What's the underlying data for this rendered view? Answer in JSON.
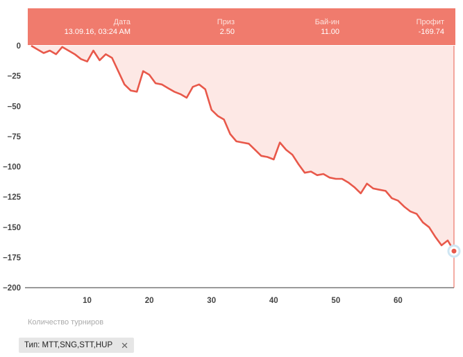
{
  "chart_data": {
    "type": "area",
    "xlabel": "Количество турниров",
    "ylabel": "",
    "xlim": [
      0,
      69
    ],
    "ylim": [
      -200,
      0
    ],
    "x_ticks": [
      10,
      20,
      30,
      40,
      50,
      60
    ],
    "y_ticks": [
      0,
      -25,
      -50,
      -75,
      -100,
      -125,
      -150,
      -175,
      -200
    ],
    "grid": false,
    "series": [
      {
        "x": [
          1,
          2,
          3,
          4,
          5,
          6,
          7,
          8,
          9,
          10,
          11,
          12,
          13,
          14,
          15,
          16,
          17,
          18,
          19,
          20,
          21,
          22,
          23,
          24,
          25,
          26,
          27,
          28,
          29,
          30,
          31,
          32,
          33,
          34,
          35,
          36,
          37,
          38,
          39,
          40,
          41,
          42,
          43,
          44,
          45,
          46,
          47,
          48,
          49,
          50,
          51,
          52,
          53,
          54,
          55,
          56,
          57,
          58,
          59,
          60,
          61,
          62,
          63,
          64,
          65,
          66,
          67,
          68,
          69
        ],
        "values": [
          0,
          -3,
          -6,
          -4,
          -7,
          -1,
          -4,
          -7,
          -11,
          -13,
          -4,
          -12,
          -7,
          -10,
          -21,
          -32,
          -37,
          -38,
          -21,
          -24,
          -31,
          -32,
          -35,
          -38,
          -40,
          -43,
          -34,
          -32,
          -36,
          -53,
          -58,
          -61,
          -73,
          -79,
          -80,
          -81,
          -86,
          -91,
          -92,
          -94,
          -80,
          -86,
          -90,
          -98,
          -105,
          -104,
          -107,
          -106,
          -109,
          -110,
          -110,
          -113,
          -117,
          -122,
          -114,
          -118,
          -119,
          -120,
          -126,
          -128,
          -133,
          -137,
          -139,
          -146,
          -150,
          -158,
          -165,
          -161,
          -169.74
        ]
      }
    ],
    "colors": {
      "line": "#e8584a",
      "fill": "#fde8e5",
      "tooltip": "#f07b6d",
      "crosshair": "#e8584a"
    }
  },
  "tooltip": {
    "date_label": "Дата",
    "date_value": "13.09.16, 03:24 AM",
    "prize_label": "Приз",
    "prize_value": "2.50",
    "buyin_label": "Бай-ин",
    "buyin_value": "11.00",
    "profit_label": "Профит",
    "profit_value": "-169.74"
  },
  "filter": {
    "label": "Тип: MTT,SNG,STT,HUP",
    "remove_icon": "close-icon"
  }
}
